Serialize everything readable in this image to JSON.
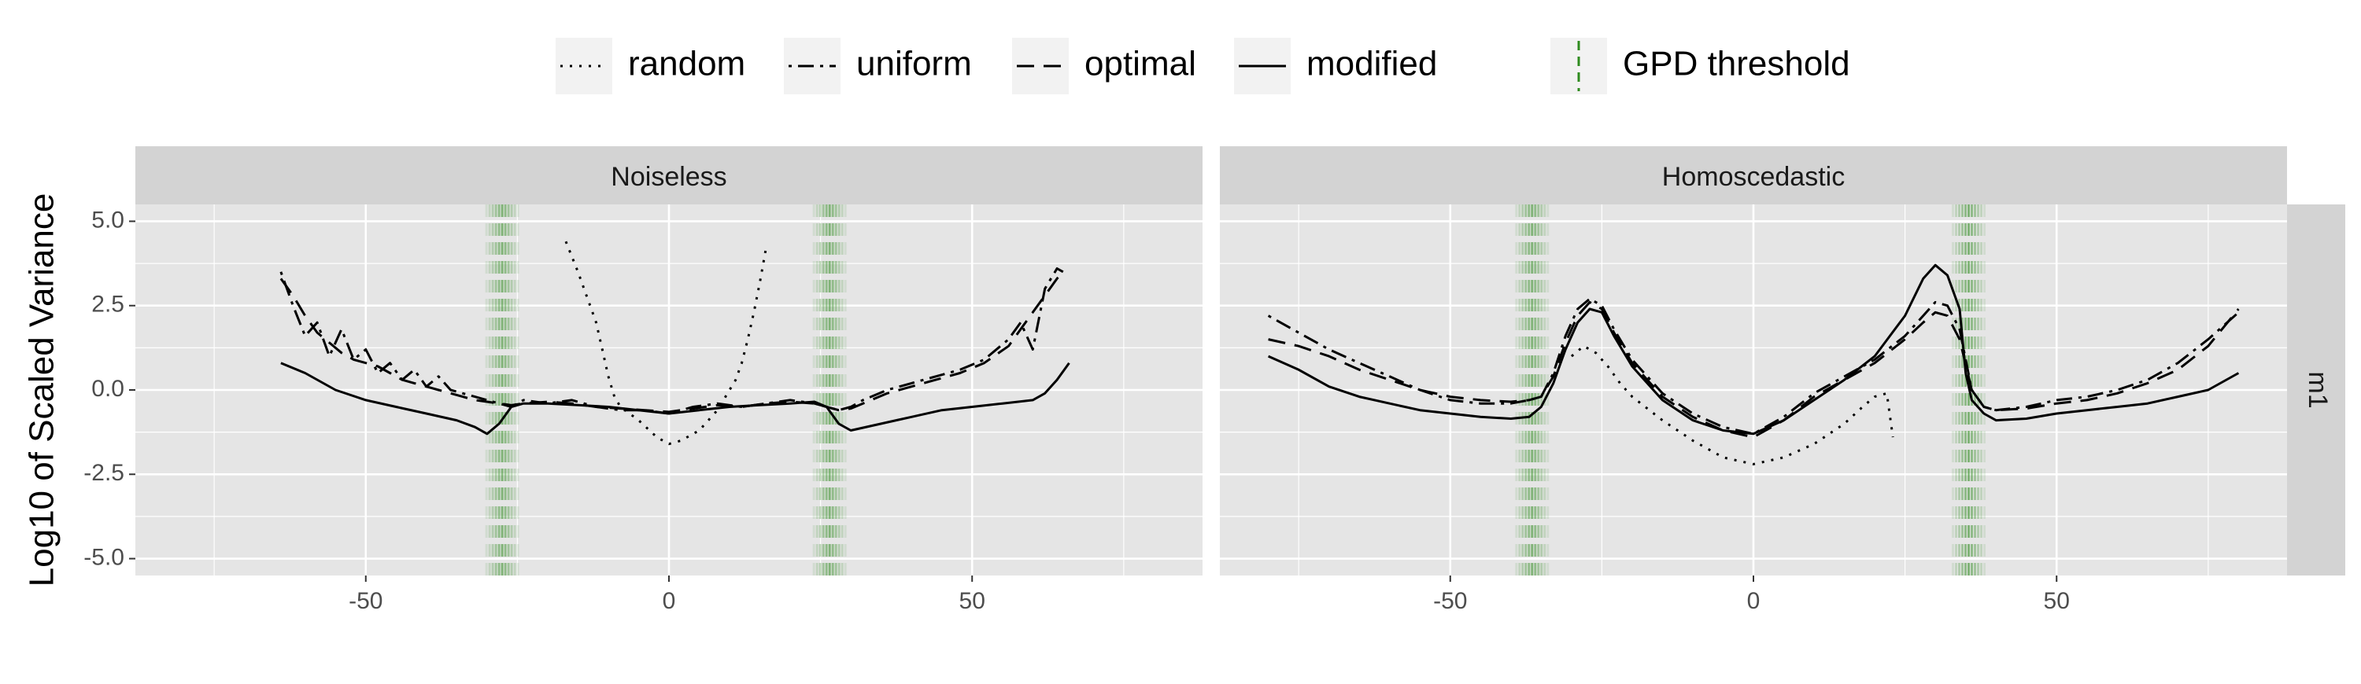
{
  "chart_data": {
    "type": "line",
    "ylabel": "Log10 of Scaled Variance",
    "xlabel": "",
    "xlim": [
      -88,
      88
    ],
    "ylim": [
      -5.5,
      5.5
    ],
    "x_ticks": [
      -50,
      0,
      50
    ],
    "y_ticks": [
      -5.0,
      -2.5,
      0.0,
      2.5,
      5.0
    ],
    "y_tick_labels": [
      "-5.0",
      "-2.5",
      "0.0",
      "2.5",
      "5.0"
    ],
    "x_tick_labels": [
      "-50",
      "0",
      "50"
    ],
    "row_strip": "m1",
    "grid": true,
    "legend_position": "top",
    "legend": [
      {
        "key": "random",
        "label": "random",
        "dash": "dotted"
      },
      {
        "key": "uniform",
        "label": "uniform",
        "dash": "dotdash"
      },
      {
        "key": "optimal",
        "label": "optimal",
        "dash": "dashed"
      },
      {
        "key": "modified",
        "label": "modified",
        "dash": "solid"
      },
      {
        "key": "gpd",
        "label": "GPD threshold",
        "dash": "threshold",
        "color": "#2e8b1e"
      }
    ],
    "colors": {
      "line": "#000000",
      "threshold": "#2e8b1e",
      "panel_bg": "#e5e5e5",
      "strip_bg": "#d3d3d3",
      "grid": "#ffffff"
    },
    "panels": [
      {
        "title": "Noiseless",
        "thresholds": [
          -27.5,
          26.5
        ],
        "series": [
          {
            "name": "random",
            "x": [
              -17,
              -15,
              -14,
              -13,
              -12,
              -11,
              -10,
              -9,
              -8,
              -5,
              -2,
              0,
              2,
              5,
              8,
              11,
              12,
              13,
              14,
              15,
              16
            ],
            "y": [
              4.4,
              3.5,
              3.0,
              2.5,
              2.0,
              1.2,
              0.4,
              -0.2,
              -0.5,
              -0.9,
              -1.4,
              -1.6,
              -1.5,
              -1.2,
              -0.6,
              0.3,
              0.8,
              1.5,
              2.3,
              3.2,
              4.2
            ]
          },
          {
            "name": "uniform",
            "x": [
              -64,
              -62,
              -60,
              -58,
              -56,
              -54,
              -52,
              -50,
              -48,
              -46,
              -44,
              -42,
              -40,
              -38,
              -36,
              -34,
              -32,
              -30,
              -28,
              -26,
              -24,
              -20,
              -16,
              -12,
              -8,
              -4,
              0,
              4,
              8,
              12,
              16,
              20,
              24,
              26,
              28,
              30,
              32,
              36,
              40,
              44,
              48,
              52,
              56,
              58,
              60,
              62,
              64,
              65
            ],
            "y": [
              3.5,
              2.5,
              1.6,
              2.0,
              1.0,
              1.8,
              0.9,
              1.2,
              0.5,
              0.8,
              0.3,
              0.6,
              0.1,
              0.4,
              0.0,
              -0.1,
              -0.2,
              -0.3,
              -0.4,
              -0.5,
              -0.3,
              -0.4,
              -0.3,
              -0.5,
              -0.6,
              -0.6,
              -0.7,
              -0.5,
              -0.4,
              -0.5,
              -0.4,
              -0.3,
              -0.4,
              -0.5,
              -0.6,
              -0.5,
              -0.3,
              0.0,
              0.2,
              0.4,
              0.6,
              0.9,
              1.5,
              2.0,
              1.2,
              3.0,
              3.6,
              3.5
            ]
          },
          {
            "name": "optimal",
            "x": [
              -64,
              -62,
              -60,
              -58,
              -56,
              -54,
              -52,
              -50,
              -48,
              -46,
              -44,
              -42,
              -40,
              -38,
              -36,
              -34,
              -32,
              -30,
              -28,
              -26,
              -24,
              -20,
              -16,
              -12,
              -8,
              -4,
              0,
              4,
              8,
              12,
              16,
              20,
              24,
              26,
              28,
              30,
              32,
              36,
              40,
              44,
              48,
              52,
              56,
              58,
              60,
              62,
              64,
              65
            ],
            "y": [
              3.3,
              2.8,
              2.2,
              1.7,
              1.4,
              1.1,
              0.9,
              0.8,
              0.7,
              0.5,
              0.3,
              0.2,
              0.1,
              0.0,
              -0.1,
              -0.2,
              -0.3,
              -0.35,
              -0.4,
              -0.45,
              -0.4,
              -0.35,
              -0.4,
              -0.5,
              -0.55,
              -0.6,
              -0.65,
              -0.55,
              -0.45,
              -0.5,
              -0.4,
              -0.35,
              -0.4,
              -0.5,
              -0.6,
              -0.55,
              -0.4,
              -0.1,
              0.1,
              0.3,
              0.5,
              0.8,
              1.3,
              1.8,
              2.3,
              2.8,
              3.3,
              3.5
            ]
          },
          {
            "name": "modified",
            "x": [
              -64,
              -60,
              -55,
              -50,
              -45,
              -40,
              -35,
              -32,
              -30,
              -28,
              -26,
              -24,
              -20,
              -15,
              -10,
              -5,
              0,
              5,
              10,
              15,
              20,
              24,
              26,
              28,
              30,
              35,
              40,
              45,
              50,
              55,
              60,
              62,
              64,
              66
            ],
            "y": [
              0.8,
              0.5,
              0.0,
              -0.3,
              -0.5,
              -0.7,
              -0.9,
              -1.1,
              -1.3,
              -1.0,
              -0.5,
              -0.4,
              -0.4,
              -0.45,
              -0.5,
              -0.6,
              -0.7,
              -0.6,
              -0.5,
              -0.45,
              -0.4,
              -0.35,
              -0.5,
              -1.0,
              -1.2,
              -1.0,
              -0.8,
              -0.6,
              -0.5,
              -0.4,
              -0.3,
              -0.1,
              0.3,
              0.8
            ]
          }
        ]
      },
      {
        "title": "Homoscedastic",
        "thresholds": [
          -36.5,
          35.5
        ],
        "series": [
          {
            "name": "random",
            "x": [
              -30,
              -28,
              -26,
              -24,
              -22,
              -20,
              -15,
              -10,
              -5,
              0,
              5,
              10,
              15,
              18,
              20,
              22,
              23
            ],
            "y": [
              1.0,
              1.3,
              1.1,
              0.7,
              0.2,
              -0.2,
              -0.9,
              -1.5,
              -2.0,
              -2.2,
              -2.0,
              -1.6,
              -1.0,
              -0.5,
              -0.2,
              -0.1,
              -1.4
            ]
          },
          {
            "name": "uniform",
            "x": [
              -80,
              -75,
              -70,
              -65,
              -60,
              -55,
              -50,
              -45,
              -40,
              -37,
              -35,
              -33,
              -31,
              -29,
              -27,
              -25,
              -23,
              -20,
              -15,
              -10,
              -5,
              0,
              5,
              10,
              15,
              20,
              25,
              28,
              30,
              32,
              34,
              36,
              38,
              40,
              45,
              50,
              55,
              60,
              65,
              70,
              75,
              80
            ],
            "y": [
              2.2,
              1.7,
              1.2,
              0.8,
              0.4,
              0.0,
              -0.3,
              -0.4,
              -0.4,
              -0.3,
              -0.2,
              0.5,
              1.6,
              2.4,
              2.7,
              2.5,
              1.8,
              0.9,
              -0.1,
              -0.7,
              -1.1,
              -1.3,
              -0.8,
              -0.1,
              0.4,
              0.9,
              1.6,
              2.2,
              2.6,
              2.5,
              1.8,
              0.0,
              -0.5,
              -0.6,
              -0.5,
              -0.3,
              -0.2,
              0.0,
              0.3,
              0.8,
              1.5,
              2.3
            ]
          },
          {
            "name": "optimal",
            "x": [
              -80,
              -75,
              -70,
              -65,
              -60,
              -55,
              -50,
              -45,
              -40,
              -37,
              -35,
              -33,
              -31,
              -29,
              -27,
              -25,
              -23,
              -20,
              -15,
              -10,
              -5,
              0,
              5,
              10,
              15,
              20,
              25,
              28,
              30,
              32,
              34,
              36,
              38,
              40,
              45,
              50,
              55,
              60,
              65,
              70,
              75,
              80
            ],
            "y": [
              1.5,
              1.3,
              1.0,
              0.6,
              0.3,
              0.0,
              -0.2,
              -0.3,
              -0.35,
              -0.3,
              -0.2,
              0.4,
              1.4,
              2.2,
              2.6,
              2.4,
              1.7,
              0.8,
              -0.2,
              -0.8,
              -1.2,
              -1.4,
              -0.9,
              -0.2,
              0.3,
              0.8,
              1.5,
              2.0,
              2.3,
              2.2,
              1.5,
              0.0,
              -0.5,
              -0.6,
              -0.55,
              -0.4,
              -0.3,
              -0.1,
              0.2,
              0.6,
              1.3,
              2.4
            ]
          },
          {
            "name": "modified",
            "x": [
              -80,
              -75,
              -70,
              -65,
              -60,
              -55,
              -50,
              -45,
              -40,
              -37,
              -35,
              -33,
              -31,
              -29,
              -27,
              -25,
              -23,
              -20,
              -15,
              -10,
              -5,
              0,
              5,
              10,
              15,
              20,
              25,
              28,
              30,
              32,
              34,
              35,
              36,
              38,
              40,
              45,
              50,
              55,
              60,
              65,
              70,
              75,
              80
            ],
            "y": [
              1.0,
              0.6,
              0.1,
              -0.2,
              -0.4,
              -0.6,
              -0.7,
              -0.8,
              -0.85,
              -0.8,
              -0.5,
              0.2,
              1.2,
              2.0,
              2.4,
              2.3,
              1.6,
              0.7,
              -0.3,
              -0.9,
              -1.2,
              -1.3,
              -0.9,
              -0.3,
              0.3,
              1.0,
              2.2,
              3.3,
              3.7,
              3.4,
              2.4,
              0.5,
              -0.3,
              -0.7,
              -0.9,
              -0.85,
              -0.7,
              -0.6,
              -0.5,
              -0.4,
              -0.2,
              0.0,
              0.5
            ]
          }
        ]
      }
    ]
  }
}
